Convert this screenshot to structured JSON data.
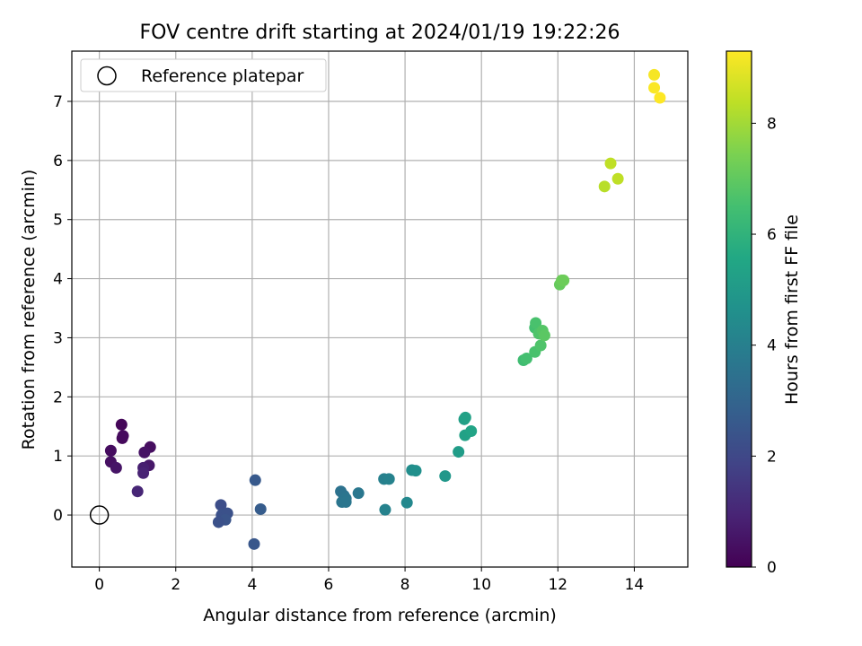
{
  "chart_data": {
    "type": "scatter",
    "title": "FOV centre drift starting at 2024/01/19 19:22:26",
    "xlabel": "Angular distance from reference (arcmin)",
    "ylabel": "Rotation from reference (arcmin)",
    "xlim": [
      -0.72,
      15.4
    ],
    "ylim": [
      -0.88,
      7.85
    ],
    "x_ticks": [
      0,
      2,
      4,
      6,
      8,
      10,
      12,
      14
    ],
    "y_ticks": [
      0,
      1,
      2,
      3,
      4,
      5,
      6,
      7
    ],
    "grid": true,
    "legend": {
      "position": "upper-left",
      "entries": [
        "Reference platepar"
      ]
    },
    "reference_point": {
      "x": 0,
      "y": 0,
      "label": "Reference platepar"
    },
    "colorbar": {
      "label": "Hours from first FF file",
      "colormap": "viridis",
      "range": [
        0,
        9.3
      ],
      "ticks": [
        0,
        2,
        4,
        6,
        8
      ]
    },
    "points": [
      {
        "x": 0.58,
        "y": 1.53,
        "c": 0.15
      },
      {
        "x": 0.6,
        "y": 1.3,
        "c": 0.2
      },
      {
        "x": 0.62,
        "y": 1.34,
        "c": 0.25
      },
      {
        "x": 0.3,
        "y": 1.09,
        "c": 0.3
      },
      {
        "x": 0.3,
        "y": 0.9,
        "c": 0.4
      },
      {
        "x": 0.44,
        "y": 0.8,
        "c": 0.5
      },
      {
        "x": 1.33,
        "y": 1.15,
        "c": 0.35
      },
      {
        "x": 1.18,
        "y": 1.06,
        "c": 0.45
      },
      {
        "x": 1.3,
        "y": 0.84,
        "c": 0.6
      },
      {
        "x": 1.15,
        "y": 0.8,
        "c": 0.8
      },
      {
        "x": 1.15,
        "y": 0.71,
        "c": 0.9
      },
      {
        "x": 1.0,
        "y": 0.4,
        "c": 1.0
      },
      {
        "x": 3.18,
        "y": 0.17,
        "c": 2.2
      },
      {
        "x": 3.2,
        "y": 0.0,
        "c": 2.3
      },
      {
        "x": 3.35,
        "y": 0.03,
        "c": 2.3
      },
      {
        "x": 3.3,
        "y": -0.08,
        "c": 2.4
      },
      {
        "x": 3.12,
        "y": -0.12,
        "c": 2.3
      },
      {
        "x": 4.08,
        "y": 0.59,
        "c": 2.6
      },
      {
        "x": 4.22,
        "y": 0.1,
        "c": 2.7
      },
      {
        "x": 4.05,
        "y": -0.49,
        "c": 2.5
      },
      {
        "x": 6.32,
        "y": 0.4,
        "c": 3.5
      },
      {
        "x": 6.4,
        "y": 0.33,
        "c": 3.55
      },
      {
        "x": 6.45,
        "y": 0.28,
        "c": 3.6
      },
      {
        "x": 6.35,
        "y": 0.22,
        "c": 3.6
      },
      {
        "x": 6.45,
        "y": 0.22,
        "c": 3.65
      },
      {
        "x": 6.78,
        "y": 0.37,
        "c": 3.7
      },
      {
        "x": 7.45,
        "y": 0.61,
        "c": 4.0
      },
      {
        "x": 7.58,
        "y": 0.61,
        "c": 4.1
      },
      {
        "x": 7.48,
        "y": 0.09,
        "c": 4.1
      },
      {
        "x": 8.05,
        "y": 0.21,
        "c": 4.3
      },
      {
        "x": 8.18,
        "y": 0.76,
        "c": 4.5
      },
      {
        "x": 8.28,
        "y": 0.75,
        "c": 4.6
      },
      {
        "x": 9.05,
        "y": 0.66,
        "c": 4.9
      },
      {
        "x": 9.4,
        "y": 1.07,
        "c": 5.1
      },
      {
        "x": 9.55,
        "y": 1.62,
        "c": 5.2
      },
      {
        "x": 9.58,
        "y": 1.65,
        "c": 5.3
      },
      {
        "x": 9.57,
        "y": 1.35,
        "c": 5.3
      },
      {
        "x": 9.73,
        "y": 1.42,
        "c": 5.4
      },
      {
        "x": 11.1,
        "y": 2.62,
        "c": 6.4
      },
      {
        "x": 11.18,
        "y": 2.65,
        "c": 6.5
      },
      {
        "x": 11.4,
        "y": 2.76,
        "c": 6.6
      },
      {
        "x": 11.55,
        "y": 2.87,
        "c": 6.7
      },
      {
        "x": 11.4,
        "y": 3.17,
        "c": 6.5
      },
      {
        "x": 11.42,
        "y": 3.25,
        "c": 6.6
      },
      {
        "x": 11.5,
        "y": 3.07,
        "c": 6.7
      },
      {
        "x": 11.6,
        "y": 3.12,
        "c": 6.8
      },
      {
        "x": 11.65,
        "y": 3.04,
        "c": 6.9
      },
      {
        "x": 12.05,
        "y": 3.9,
        "c": 7.1
      },
      {
        "x": 12.1,
        "y": 3.97,
        "c": 7.2
      },
      {
        "x": 12.15,
        "y": 3.97,
        "c": 7.2
      },
      {
        "x": 13.22,
        "y": 5.56,
        "c": 8.3
      },
      {
        "x": 13.38,
        "y": 5.95,
        "c": 8.4
      },
      {
        "x": 13.57,
        "y": 5.69,
        "c": 8.4
      },
      {
        "x": 14.52,
        "y": 7.45,
        "c": 9.2
      },
      {
        "x": 14.52,
        "y": 7.23,
        "c": 9.25
      },
      {
        "x": 14.67,
        "y": 7.06,
        "c": 9.3
      }
    ]
  }
}
